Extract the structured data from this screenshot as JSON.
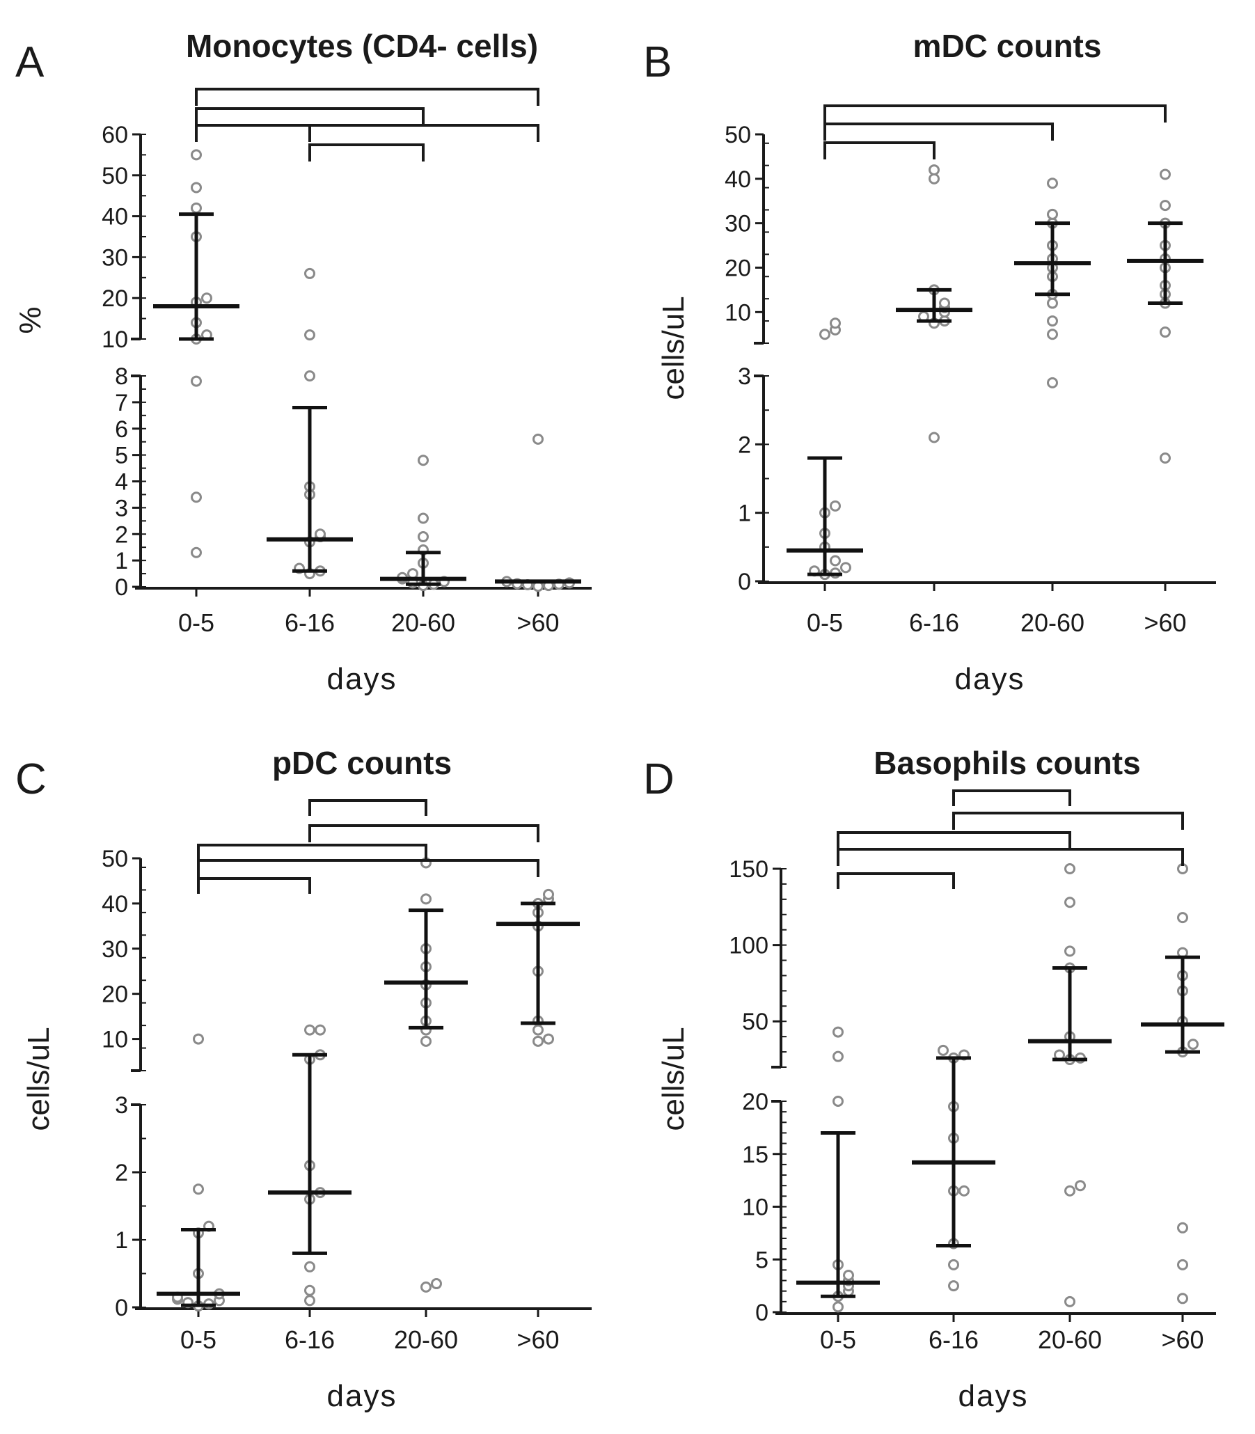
{
  "colors": {
    "axis": "#1a1a1a",
    "point_stroke": "#8a8a8a",
    "summary": "#111111",
    "background": "#ffffff"
  },
  "chart_data": [
    {
      "panel": "A",
      "type": "scatter",
      "title": "Monocytes (CD4- cells)",
      "xlabel": "days",
      "ylabel": "%",
      "categories": [
        "0-5",
        "6-16",
        "20-60",
        ">60"
      ],
      "y_segments": [
        {
          "range": [
            0,
            8
          ],
          "ticks": [
            0,
            1,
            2,
            3,
            4,
            5,
            6,
            7,
            8
          ],
          "minor_step": 0.5
        },
        {
          "range": [
            10,
            60
          ],
          "ticks": [
            10,
            20,
            30,
            40,
            50,
            60
          ],
          "minor_step": 5
        }
      ],
      "points": [
        [
          1.3,
          3.4,
          7.8,
          10,
          11,
          14,
          19,
          20,
          35,
          42,
          47,
          55
        ],
        [
          0.5,
          0.6,
          0.7,
          1.7,
          1.9,
          2.0,
          3.5,
          3.8,
          8.0,
          11,
          26
        ],
        [
          0.05,
          0.1,
          0.15,
          0.2,
          0.3,
          0.35,
          0.5,
          0.9,
          1.4,
          1.9,
          2.6,
          4.8
        ],
        [
          0.02,
          0.05,
          0.08,
          0.1,
          0.12,
          0.15,
          0.2,
          5.6
        ]
      ],
      "medians": [
        18,
        1.8,
        0.3,
        0.2
      ],
      "iqr": [
        [
          9,
          40.5
        ],
        [
          0.6,
          6.8
        ],
        [
          0.1,
          1.3
        ],
        null
      ],
      "brackets": [
        [
          "0-5",
          "6-16"
        ],
        [
          "6-16",
          "20-60"
        ],
        [
          "0-5",
          "20-60"
        ],
        [
          "6-16",
          ">60"
        ],
        [
          "0-5",
          ">60"
        ]
      ]
    },
    {
      "panel": "B",
      "type": "scatter",
      "title": "mDC counts",
      "xlabel": "days",
      "ylabel": "cells/uL",
      "categories": [
        "0-5",
        "6-16",
        "20-60",
        ">60"
      ],
      "y_segments": [
        {
          "range": [
            0,
            3
          ],
          "ticks": [
            0,
            1,
            2,
            3
          ],
          "minor_step": 0.5
        },
        {
          "range": [
            3,
            50
          ],
          "ticks": [
            10,
            20,
            30,
            40,
            50
          ],
          "minor_step": 5
        }
      ],
      "points": [
        [
          0.1,
          0.12,
          0.15,
          0.2,
          0.3,
          0.5,
          0.7,
          1.0,
          1.1,
          5,
          6,
          7.5
        ],
        [
          2.1,
          7.5,
          8,
          9,
          10,
          11,
          12,
          15,
          40,
          42
        ],
        [
          2.9,
          5,
          8,
          12,
          14,
          18,
          20,
          22,
          25,
          30,
          32,
          39
        ],
        [
          1.8,
          5.5,
          12,
          14,
          16,
          20,
          22,
          25,
          30,
          34,
          41
        ]
      ],
      "medians": [
        0.45,
        10.5,
        21,
        21.5
      ],
      "iqr": [
        [
          0.1,
          1.8
        ],
        [
          8,
          15
        ],
        [
          14,
          30
        ],
        [
          12,
          30
        ]
      ],
      "brackets": [
        [
          "0-5",
          "6-16"
        ],
        [
          "0-5",
          "20-60"
        ],
        [
          "0-5",
          ">60"
        ]
      ]
    },
    {
      "panel": "C",
      "type": "scatter",
      "title": "pDC counts",
      "xlabel": "days",
      "ylabel": "cells/uL",
      "categories": [
        "0-5",
        "6-16",
        "20-60",
        ">60"
      ],
      "y_segments": [
        {
          "range": [
            0,
            3
          ],
          "ticks": [
            0,
            1,
            2,
            3
          ],
          "minor_step": 0.5
        },
        {
          "range": [
            3,
            50
          ],
          "ticks": [
            10,
            20,
            30,
            40,
            50
          ],
          "minor_step": 5
        }
      ],
      "points": [
        [
          0.02,
          0.05,
          0.07,
          0.1,
          0.12,
          0.15,
          0.2,
          0.5,
          1.1,
          1.2,
          1.75,
          10
        ],
        [
          0.1,
          0.25,
          0.6,
          1.6,
          1.7,
          2.1,
          5.5,
          6.5,
          12,
          12
        ],
        [
          0.3,
          0.35,
          9.5,
          12,
          14,
          18,
          22,
          26,
          30,
          41,
          49
        ],
        [
          9.5,
          10,
          12,
          14,
          25,
          35,
          38,
          40,
          41,
          42
        ]
      ],
      "medians": [
        0.2,
        1.7,
        22.5,
        35.5
      ],
      "iqr": [
        [
          0.03,
          1.15
        ],
        [
          0.8,
          6.5
        ],
        [
          12.5,
          38.5
        ],
        [
          13.5,
          40
        ]
      ],
      "brackets": [
        [
          "0-5",
          "6-16"
        ],
        [
          "0-5",
          ">60"
        ],
        [
          "0-5",
          "20-60"
        ],
        [
          "6-16",
          ">60"
        ],
        [
          "6-16",
          "20-60"
        ]
      ]
    },
    {
      "panel": "D",
      "type": "scatter",
      "title": "Basophils counts",
      "xlabel": "days",
      "ylabel": "cells/uL",
      "categories": [
        "0-5",
        "6-16",
        "20-60",
        ">60"
      ],
      "y_segments": [
        {
          "range": [
            0,
            20
          ],
          "ticks": [
            0,
            5,
            10,
            15,
            20
          ],
          "minor_step": 1
        },
        {
          "range": [
            20,
            150
          ],
          "ticks": [
            50,
            100,
            150
          ],
          "minor_step": 10
        }
      ],
      "points": [
        [
          0.5,
          1.5,
          2,
          2.5,
          3,
          3.5,
          4.5,
          20,
          27,
          43
        ],
        [
          2.5,
          4.5,
          6.5,
          11.5,
          11.5,
          16.5,
          19.5,
          26,
          28,
          31
        ],
        [
          1,
          11.5,
          12,
          25,
          26,
          28,
          40,
          85,
          96,
          128,
          155
        ],
        [
          1.3,
          4.5,
          8,
          30,
          35,
          50,
          70,
          80,
          95,
          118,
          152
        ]
      ],
      "medians": [
        2.8,
        14.2,
        37,
        48
      ],
      "iqr": [
        [
          1.5,
          17
        ],
        [
          6.3,
          26
        ],
        [
          25,
          85
        ],
        [
          30,
          92
        ]
      ],
      "brackets": [
        [
          "0-5",
          "6-16"
        ],
        [
          "0-5",
          ">60"
        ],
        [
          "0-5",
          "20-60"
        ],
        [
          "6-16",
          ">60"
        ],
        [
          "6-16",
          "20-60"
        ]
      ]
    }
  ]
}
